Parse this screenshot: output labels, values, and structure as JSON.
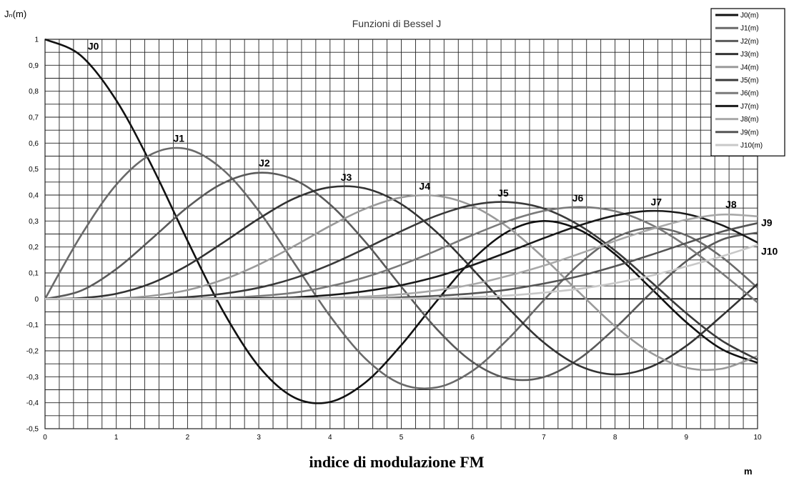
{
  "chart_data": {
    "type": "line",
    "title": "Funzioni di Bessel J",
    "ylabel": "Jₙ(m)",
    "xlabel": "indice di modulazione FM",
    "xunit": "m",
    "xlim": [
      0,
      10
    ],
    "ylim": [
      -0.5,
      1
    ],
    "grid": true,
    "legend_position": "top-right",
    "x_ticks": [
      0,
      1,
      2,
      3,
      4,
      5,
      6,
      7,
      8,
      9,
      10
    ],
    "y_ticks": [
      "-0,5",
      "-0,4",
      "-0,3",
      "-0,2",
      "-0,1",
      "0",
      "0,1",
      "0,2",
      "0,3",
      "0,4",
      "0,5",
      "0,6",
      "0,7",
      "0,8",
      "0,9",
      "1"
    ],
    "x": [
      0,
      0.5,
      1,
      1.5,
      2,
      2.5,
      3,
      3.5,
      4,
      4.5,
      5,
      5.5,
      6,
      6.5,
      7,
      7.5,
      8,
      8.5,
      9,
      9.5,
      10
    ],
    "series": [
      {
        "name": "J0(m)",
        "color": "#111111",
        "values": [
          1,
          0.938,
          0.765,
          0.512,
          0.224,
          -0.048,
          -0.26,
          -0.38,
          -0.397,
          -0.321,
          -0.178,
          -0.007,
          0.151,
          0.26,
          0.3,
          0.266,
          0.172,
          0.042,
          -0.09,
          -0.194,
          -0.246
        ]
      },
      {
        "name": "J1(m)",
        "color": "#6a6a6a",
        "values": [
          0,
          0.242,
          0.44,
          0.558,
          0.577,
          0.497,
          0.339,
          0.137,
          -0.066,
          -0.231,
          -0.328,
          -0.341,
          -0.277,
          -0.154,
          -0.005,
          0.135,
          0.235,
          0.273,
          0.245,
          0.161,
          0.043
        ]
      },
      {
        "name": "J2(m)",
        "color": "#5a5a5a",
        "values": [
          0,
          0.031,
          0.115,
          0.232,
          0.353,
          0.446,
          0.486,
          0.459,
          0.364,
          0.218,
          0.047,
          -0.117,
          -0.243,
          -0.307,
          -0.301,
          -0.23,
          -0.113,
          0.022,
          0.145,
          0.228,
          0.255
        ]
      },
      {
        "name": "J3(m)",
        "color": "#333333",
        "values": [
          0,
          0.003,
          0.02,
          0.061,
          0.129,
          0.217,
          0.309,
          0.387,
          0.43,
          0.425,
          0.365,
          0.256,
          0.115,
          -0.035,
          -0.168,
          -0.258,
          -0.291,
          -0.262,
          -0.181,
          -0.065,
          0.058
        ]
      },
      {
        "name": "J4(m)",
        "color": "#9a9a9a",
        "values": [
          0,
          0,
          0.002,
          0.012,
          0.034,
          0.074,
          0.132,
          0.204,
          0.281,
          0.348,
          0.391,
          0.397,
          0.358,
          0.275,
          0.158,
          0.024,
          -0.105,
          -0.207,
          -0.265,
          -0.269,
          -0.22
        ]
      },
      {
        "name": "J5(m)",
        "color": "#3a3a3a",
        "values": [
          0,
          0,
          0,
          0.002,
          0.007,
          0.02,
          0.043,
          0.08,
          0.132,
          0.195,
          0.261,
          0.321,
          0.362,
          0.373,
          0.348,
          0.283,
          0.186,
          0.067,
          -0.055,
          -0.161,
          -0.234
        ]
      },
      {
        "name": "J6(m)",
        "color": "#7a7a7a",
        "values": [
          0,
          0,
          0,
          0,
          0.001,
          0.004,
          0.011,
          0.024,
          0.049,
          0.084,
          0.131,
          0.187,
          0.246,
          0.3,
          0.339,
          0.354,
          0.338,
          0.287,
          0.204,
          0.099,
          -0.014
        ]
      },
      {
        "name": "J7(m)",
        "color": "#1a1a1a",
        "values": [
          0,
          0,
          0,
          0,
          0,
          0.001,
          0.003,
          0.006,
          0.015,
          0.03,
          0.053,
          0.086,
          0.13,
          0.181,
          0.234,
          0.283,
          0.321,
          0.339,
          0.327,
          0.284,
          0.217
        ]
      },
      {
        "name": "J8(m)",
        "color": "#a8a8a8",
        "values": [
          0,
          0,
          0,
          0,
          0,
          0,
          0,
          0.002,
          0.004,
          0.009,
          0.018,
          0.033,
          0.056,
          0.089,
          0.128,
          0.174,
          0.223,
          0.268,
          0.305,
          0.325,
          0.318
        ]
      },
      {
        "name": "J9(m)",
        "color": "#555555",
        "values": [
          0,
          0,
          0,
          0,
          0,
          0,
          0,
          0,
          0.001,
          0.002,
          0.006,
          0.012,
          0.021,
          0.036,
          0.059,
          0.088,
          0.126,
          0.169,
          0.215,
          0.259,
          0.292
        ]
      },
      {
        "name": "J10(m)",
        "color": "#c8c8c8",
        "values": [
          0,
          0,
          0,
          0,
          0,
          0,
          0,
          0,
          0,
          0.001,
          0.001,
          0.003,
          0.007,
          0.013,
          0.024,
          0.039,
          0.061,
          0.089,
          0.125,
          0.164,
          0.208
        ]
      }
    ],
    "annotations": [
      {
        "text": "J0",
        "x": 0.6,
        "y": 0.96
      },
      {
        "text": "J1",
        "x": 1.8,
        "y": 0.605
      },
      {
        "text": "J2",
        "x": 3.0,
        "y": 0.51
      },
      {
        "text": "J3",
        "x": 4.15,
        "y": 0.455
      },
      {
        "text": "J4",
        "x": 5.25,
        "y": 0.42
      },
      {
        "text": "J5",
        "x": 6.35,
        "y": 0.395
      },
      {
        "text": "J6",
        "x": 7.4,
        "y": 0.375
      },
      {
        "text": "J7",
        "x": 8.5,
        "y": 0.36
      },
      {
        "text": "J8",
        "x": 9.55,
        "y": 0.35
      },
      {
        "text": "J9",
        "x": 10.05,
        "y": 0.28
      },
      {
        "text": "J10",
        "x": 10.05,
        "y": 0.17
      }
    ]
  }
}
